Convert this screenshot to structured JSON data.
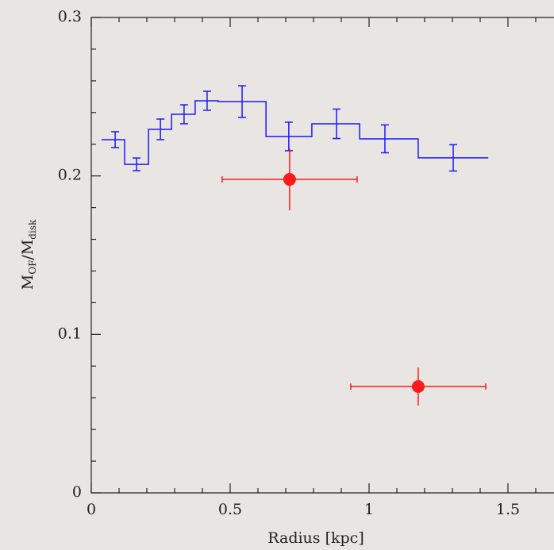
{
  "chart_data": {
    "type": "step-errorbar",
    "xlabel": "Radius [kpc]",
    "ylabel_parts": [
      "M",
      "OF",
      "/M",
      "disk"
    ],
    "xlim": [
      0,
      1.66
    ],
    "ylim": [
      0,
      0.3
    ],
    "xticks": [
      0,
      0.5,
      1,
      1.5
    ],
    "yticks": [
      0,
      0.1,
      0.2,
      0.3
    ],
    "xminor": [
      0.1,
      0.2,
      0.3,
      0.4,
      0.6,
      0.7,
      0.8,
      0.9,
      1.1,
      1.2,
      1.3,
      1.4,
      1.6
    ],
    "yminor": [
      0.02,
      0.04,
      0.06,
      0.08,
      0.12,
      0.14,
      0.16,
      0.18,
      0.22,
      0.24,
      0.26,
      0.28
    ],
    "series": [
      {
        "kind": "step",
        "color": "#1a1aff",
        "bins": [
          0.037,
          0.12,
          0.206,
          0.289,
          0.374,
          0.457,
          0.629,
          0.794,
          0.966,
          1.177,
          1.429
        ],
        "x": [
          0.086,
          0.163,
          0.249,
          0.334,
          0.417,
          0.543,
          0.711,
          0.883,
          1.057,
          1.303
        ],
        "values": [
          0.2229,
          0.2073,
          0.2294,
          0.2389,
          0.2474,
          0.2469,
          0.2249,
          0.2329,
          0.2234,
          0.2114
        ],
        "yerr": [
          0.005,
          0.004,
          0.0065,
          0.006,
          0.006,
          0.01,
          0.009,
          0.0093,
          0.0088,
          0.0083
        ]
      },
      {
        "kind": "points",
        "color": "#ff1a1a",
        "x": [
          0.714,
          1.177
        ],
        "values": [
          0.1978,
          0.0671
        ],
        "xerr": [
          0.243,
          0.243
        ],
        "yerr": [
          0.0195,
          0.012
        ]
      }
    ]
  }
}
